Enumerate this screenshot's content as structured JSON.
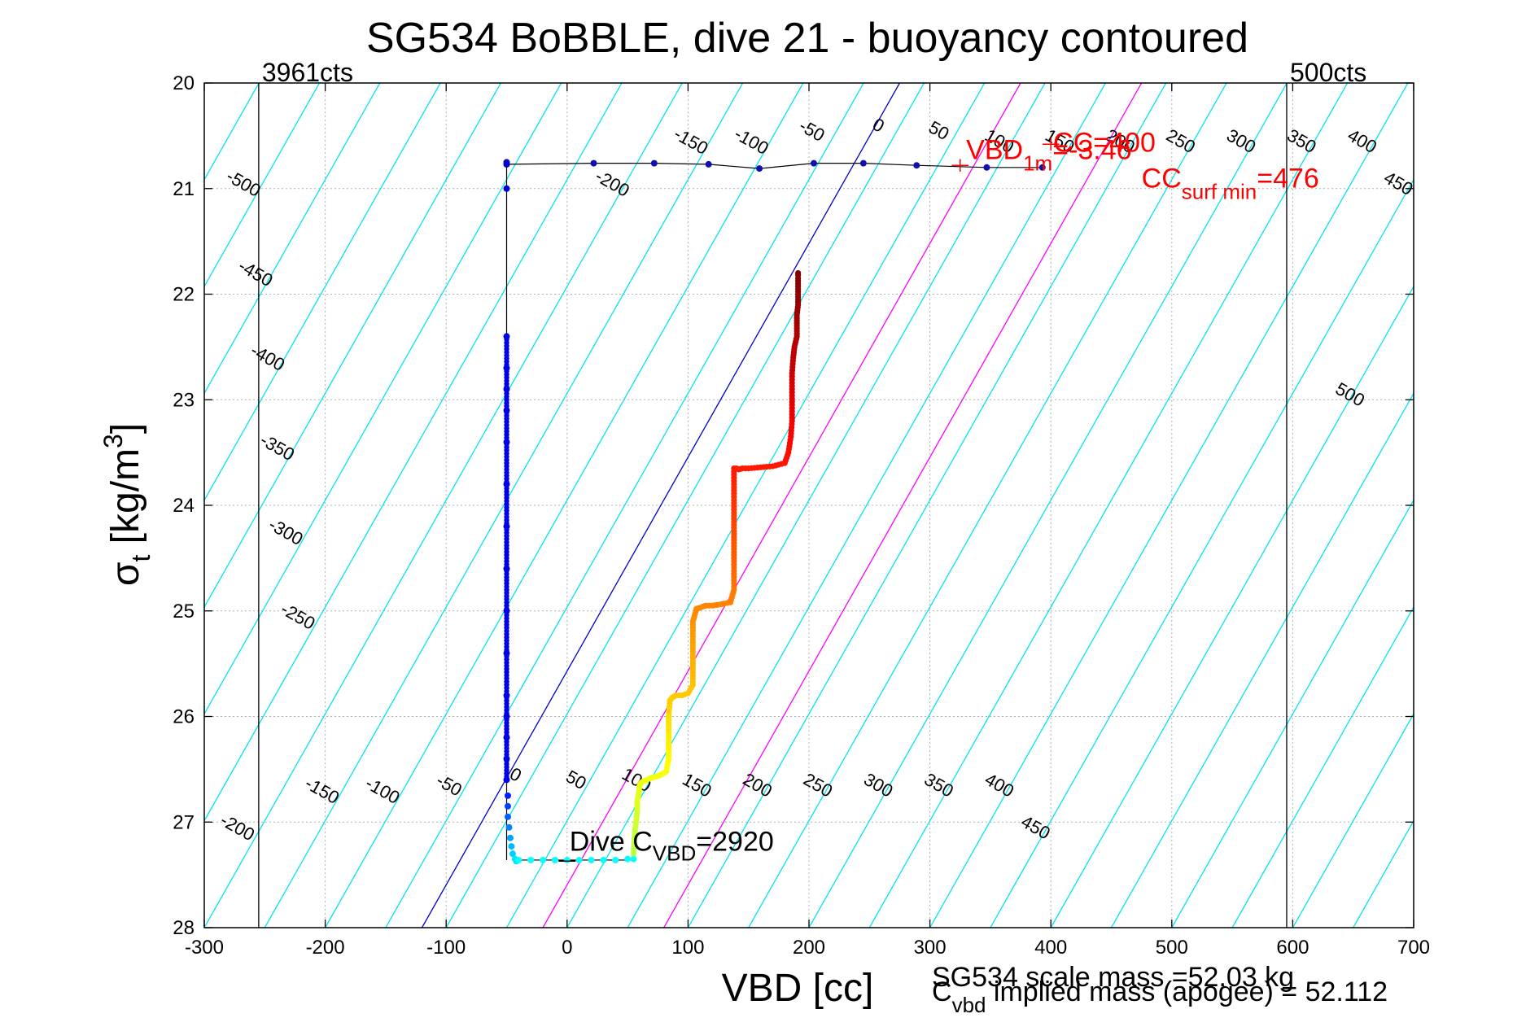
{
  "chart_data": {
    "type": "scatter",
    "title": "SG534 BoBBLE, dive 21 - buoyancy contoured",
    "xlabel": "VBD [cc]",
    "ylabel": "σ",
    "ylabel_sub": "t",
    "ylabel_unit": " [kg/m",
    "ylabel_unit_sup": "3",
    "ylabel_unit_close": "]",
    "xlim": [
      -300,
      700
    ],
    "ylim": [
      20,
      28
    ],
    "y_reversed": true,
    "grid": true,
    "x_ticks": [
      "-300",
      "-200",
      "-100",
      "0",
      "100",
      "200",
      "300",
      "400",
      "500",
      "600",
      "700"
    ],
    "y_ticks": [
      "20",
      "21",
      "22",
      "23",
      "24",
      "25",
      "26",
      "27",
      "28"
    ],
    "colors": {
      "contour": "#00e5ee",
      "reference_line": "#0000cc",
      "limit_lines": "#ff00ff",
      "annotation": "#ff0000",
      "track": "#000000",
      "grid": "#b0b0b0"
    },
    "vertical_limits": [
      {
        "x": -255,
        "label": "3961cts"
      },
      {
        "x": 595,
        "label": "500cts"
      }
    ],
    "reference_line": {
      "x": [
        -120,
        275
      ],
      "y": [
        28,
        20
      ]
    },
    "limit_lines": [
      {
        "x": [
          -20,
          375
        ],
        "y": [
          28,
          20
        ]
      },
      {
        "x": [
          80,
          475
        ],
        "y": [
          28,
          20
        ]
      }
    ],
    "contour_slope_cc_per_sigma": -49.4,
    "contour_values": [
      -500,
      -450,
      -400,
      -350,
      -300,
      -250,
      -200,
      -150,
      -100,
      -50,
      0,
      50,
      100,
      150,
      200,
      250,
      300,
      350,
      400,
      450,
      500
    ],
    "contour_labels_top": [
      {
        "text": "-500",
        "x": -270,
        "y": 21.0
      },
      {
        "text": "-450",
        "x": -260,
        "y": 21.85
      },
      {
        "text": "-400",
        "x": -250,
        "y": 22.65
      },
      {
        "text": "-350",
        "x": -242,
        "y": 23.5
      },
      {
        "text": "-300",
        "x": -235,
        "y": 24.3
      },
      {
        "text": "-250",
        "x": -225,
        "y": 25.1
      },
      {
        "text": "-200",
        "x": 35,
        "y": 21.0
      },
      {
        "text": "-150",
        "x": 100,
        "y": 20.6
      },
      {
        "text": "-100",
        "x": 150,
        "y": 20.6
      },
      {
        "text": "-50",
        "x": 200,
        "y": 20.5
      },
      {
        "text": "0",
        "x": 255,
        "y": 20.45
      },
      {
        "text": "50",
        "x": 305,
        "y": 20.5
      },
      {
        "text": "100",
        "x": 355,
        "y": 20.6
      },
      {
        "text": "150",
        "x": 405,
        "y": 20.6
      },
      {
        "text": "200",
        "x": 455,
        "y": 20.6
      },
      {
        "text": "250",
        "x": 505,
        "y": 20.6
      },
      {
        "text": "300",
        "x": 555,
        "y": 20.6
      },
      {
        "text": "350",
        "x": 605,
        "y": 20.6
      },
      {
        "text": "400",
        "x": 655,
        "y": 20.6
      },
      {
        "text": "450",
        "x": 685,
        "y": 21.0
      },
      {
        "text": "500",
        "x": 645,
        "y": 23.0
      }
    ],
    "contour_labels_bottom": [
      {
        "text": "-200",
        "x": -275,
        "y": 27.1
      },
      {
        "text": "-150",
        "x": -205,
        "y": 26.75
      },
      {
        "text": "-100",
        "x": -155,
        "y": 26.75
      },
      {
        "text": "-50",
        "x": -100,
        "y": 26.7
      },
      {
        "text": "0",
        "x": -45,
        "y": 26.6
      },
      {
        "text": "50",
        "x": 5,
        "y": 26.65
      },
      {
        "text": "100",
        "x": 55,
        "y": 26.65
      },
      {
        "text": "150",
        "x": 105,
        "y": 26.7
      },
      {
        "text": "200",
        "x": 155,
        "y": 26.7
      },
      {
        "text": "250",
        "x": 205,
        "y": 26.7
      },
      {
        "text": "300",
        "x": 255,
        "y": 26.7
      },
      {
        "text": "350",
        "x": 305,
        "y": 26.7
      },
      {
        "text": "400",
        "x": 355,
        "y": 26.7
      },
      {
        "text": "450",
        "x": 385,
        "y": 27.1
      }
    ],
    "surface_track": {
      "x": [
        -50,
        -50,
        22,
        72,
        117,
        159,
        204,
        245,
        289,
        347,
        393
      ],
      "y": [
        20.75,
        20.77,
        20.76,
        20.76,
        20.77,
        20.81,
        20.76,
        20.76,
        20.78,
        20.8,
        20.8
      ]
    },
    "descent_series": {
      "x": [
        -50,
        -50,
        -50,
        -50,
        -50,
        -50,
        -50,
        -50,
        -50,
        -50,
        -50,
        -50,
        -50,
        -50,
        -50,
        -50,
        -50,
        -49,
        -49,
        -49,
        -48,
        -47,
        -46,
        -45,
        -43,
        -42
      ],
      "y": [
        20.77,
        21.0,
        22.4,
        22.7,
        22.9,
        23.1,
        23.4,
        23.8,
        24.2,
        24.6,
        25.0,
        25.4,
        25.8,
        26.0,
        26.2,
        26.4,
        26.6,
        26.75,
        26.85,
        26.95,
        27.05,
        27.15,
        27.23,
        27.3,
        27.35,
        27.37
      ]
    },
    "bottom_series": {
      "x": [
        -40,
        -30,
        -20,
        -10,
        0,
        10,
        20,
        30,
        40,
        50,
        55
      ],
      "y": [
        27.36,
        27.36,
        27.36,
        27.36,
        27.36,
        27.36,
        27.36,
        27.36,
        27.36,
        27.35,
        27.35
      ]
    },
    "ascent_series": {
      "x": [
        55,
        56,
        57,
        58,
        58,
        59,
        60,
        62,
        66,
        70,
        74,
        78,
        82,
        84,
        84,
        84,
        85,
        85,
        87,
        90,
        95,
        100,
        104,
        104,
        104,
        104,
        107,
        110,
        112,
        115,
        120,
        126,
        130,
        135,
        138,
        138,
        138,
        138,
        138,
        138,
        138,
        140,
        142,
        145,
        150,
        160,
        170,
        180,
        183,
        185,
        186,
        186,
        186,
        186,
        187,
        188,
        189,
        190,
        190,
        190,
        191,
        191,
        191,
        191,
        191,
        191,
        191
      ],
      "y": [
        27.3,
        27.1,
        27.0,
        26.9,
        26.8,
        26.75,
        26.65,
        26.62,
        26.6,
        26.58,
        26.57,
        26.55,
        26.52,
        26.4,
        26.2,
        26.0,
        25.85,
        25.85,
        25.82,
        25.8,
        25.8,
        25.78,
        25.7,
        25.5,
        25.3,
        25.1,
        24.98,
        24.97,
        24.96,
        24.95,
        24.95,
        24.94,
        24.93,
        24.92,
        24.8,
        24.5,
        24.3,
        24.1,
        23.95,
        23.8,
        23.65,
        23.65,
        23.66,
        23.65,
        23.65,
        23.64,
        23.63,
        23.6,
        23.5,
        23.35,
        23.2,
        23.05,
        22.9,
        22.75,
        22.6,
        22.5,
        22.45,
        22.4,
        22.3,
        22.2,
        22.1,
        22.0,
        21.95,
        21.9,
        21.85,
        21.82,
        21.8
      ]
    },
    "annotations": {
      "dive_c_vbd": "Dive C",
      "dive_c_vbd_sub": "VBD",
      "dive_c_vbd_value": "=2920",
      "red_vbd": "VBD",
      "red_1m_sub": "1m",
      "red_1m_value": "=-3.46",
      "red_cc": "CC",
      "red_cc_value": "=400",
      "red_cc2": "CC",
      "red_cc2_sub": "surf min",
      "red_cc2_value": "=476",
      "scale_mass": "SG534 scale mass =52.03 kg",
      "implied_c": "C",
      "implied_c_sub": "vbd",
      "implied_mass": " implied mass (apogee) = 52.112"
    }
  }
}
